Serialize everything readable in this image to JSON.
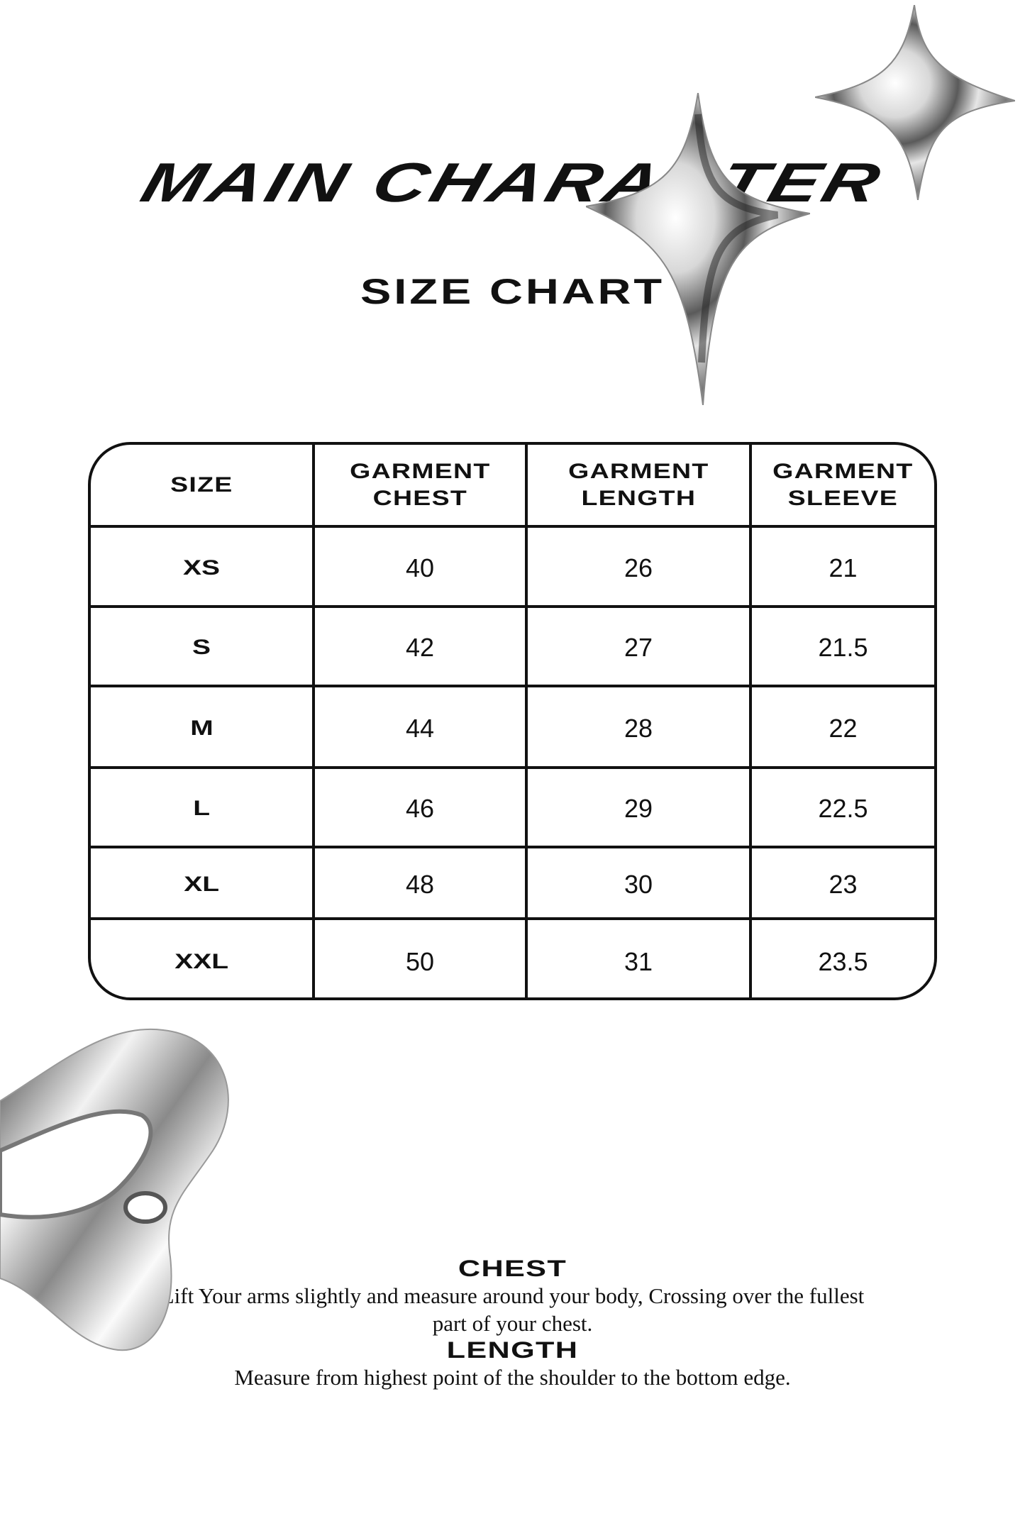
{
  "header": {
    "title": "MAIN CHARACTER",
    "subtitle": "SIZE CHART"
  },
  "table": {
    "columns": [
      {
        "line1": "SIZE",
        "line2": ""
      },
      {
        "line1": "GARMENT",
        "line2": "CHEST"
      },
      {
        "line1": "GARMENT",
        "line2": "LENGTH"
      },
      {
        "line1": "GARMENT",
        "line2": "SLEEVE"
      }
    ],
    "rows": [
      [
        "XS",
        "40",
        "26",
        "21"
      ],
      [
        "S",
        "42",
        "27",
        "21.5"
      ],
      [
        "M",
        "44",
        "28",
        "22"
      ],
      [
        "L",
        "46",
        "29",
        "22.5"
      ],
      [
        "XL",
        "48",
        "30",
        "23"
      ],
      [
        "XXL",
        "50",
        "31",
        "23.5"
      ]
    ]
  },
  "notes": {
    "chest_heading": "CHEST",
    "chest_line1": "Lift Your arms slightly and measure around your body, Crossing over the fullest",
    "chest_line2": "part of your chest.",
    "length_heading": "LENGTH",
    "length_text": "Measure from highest point of the shoulder to the bottom edge."
  },
  "decorations": [
    "chrome-star-large",
    "chrome-star-small",
    "chrome-blob"
  ]
}
